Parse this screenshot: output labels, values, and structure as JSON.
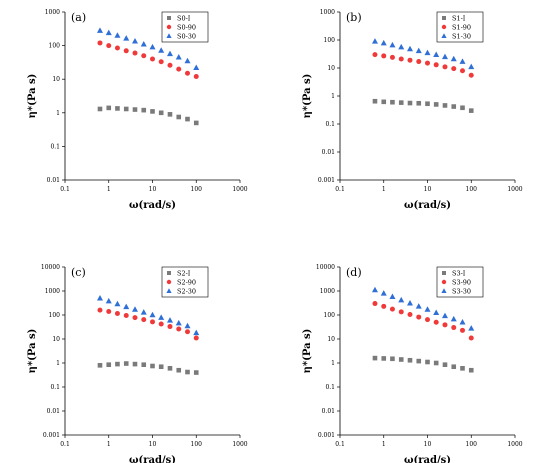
{
  "colors": {
    "series_i": "#7a7a7a",
    "series_90": "#f03a3a",
    "series_30": "#2f6fd6"
  },
  "chart_data": [
    {
      "type": "scatter",
      "panel_label": "(a)",
      "xlabel": "ω(rad/s)",
      "ylabel": "η*(Pa s)",
      "xscale": "log",
      "yscale": "log",
      "xlim": [
        0.1,
        1000
      ],
      "ylim": [
        0.01,
        1000
      ],
      "xticks": [
        "0.1",
        "1",
        "10",
        "100",
        "1000"
      ],
      "yticks": [
        "0.01",
        "0.1",
        "1",
        "10",
        "100",
        "1000"
      ],
      "legend": "top-right",
      "x": [
        0.63,
        1.0,
        1.58,
        2.51,
        3.98,
        6.31,
        10,
        15.8,
        25.1,
        39.8,
        63.1,
        100
      ],
      "series": [
        {
          "name": "S0-I",
          "marker": "square",
          "values": [
            1.3,
            1.4,
            1.35,
            1.3,
            1.25,
            1.2,
            1.1,
            1.0,
            0.9,
            0.75,
            0.65,
            0.5
          ]
        },
        {
          "name": "S0-90",
          "marker": "circle",
          "values": [
            120,
            100,
            85,
            70,
            60,
            50,
            40,
            33,
            26,
            20,
            15,
            12
          ]
        },
        {
          "name": "S0-30",
          "marker": "triangle",
          "values": [
            280,
            240,
            200,
            165,
            135,
            110,
            90,
            72,
            57,
            45,
            35,
            22
          ]
        }
      ]
    },
    {
      "type": "scatter",
      "panel_label": "(b)",
      "xlabel": "ω(rad/s)",
      "ylabel": "η*(Pa s)",
      "xscale": "log",
      "yscale": "log",
      "xlim": [
        0.1,
        1000
      ],
      "ylim": [
        0.001,
        1000
      ],
      "xticks": [
        "0.1",
        "1",
        "10",
        "100",
        "1000"
      ],
      "yticks": [
        "0.001",
        "0.01",
        "0.1",
        "1",
        "10",
        "100",
        "1000"
      ],
      "legend": "top-right",
      "x": [
        0.63,
        1.0,
        1.58,
        2.51,
        3.98,
        6.31,
        10,
        15.8,
        25.1,
        39.8,
        63.1,
        100
      ],
      "series": [
        {
          "name": "S1-I",
          "marker": "square",
          "values": [
            0.65,
            0.62,
            0.6,
            0.58,
            0.56,
            0.55,
            0.53,
            0.5,
            0.46,
            0.42,
            0.38,
            0.3
          ]
        },
        {
          "name": "S1-90",
          "marker": "circle",
          "values": [
            30,
            27,
            24,
            21,
            19,
            17,
            15,
            13,
            11,
            9.5,
            8,
            5.5
          ]
        },
        {
          "name": "S1-30",
          "marker": "triangle",
          "values": [
            90,
            78,
            66,
            56,
            48,
            41,
            35,
            30,
            25,
            21,
            17,
            11
          ]
        }
      ]
    },
    {
      "type": "scatter",
      "panel_label": "(c)",
      "xlabel": "ω(rad/s)",
      "ylabel": "η*(Pa s)",
      "xscale": "log",
      "yscale": "log",
      "xlim": [
        0.1,
        1000
      ],
      "ylim": [
        0.001,
        10000
      ],
      "xticks": [
        "0.1",
        "1",
        "10",
        "100",
        "1000"
      ],
      "yticks": [
        "0.001",
        "0.01",
        "0.1",
        "1",
        "10",
        "100",
        "1000",
        "10000"
      ],
      "legend": "top-right",
      "x": [
        0.63,
        1.0,
        1.58,
        2.51,
        3.98,
        6.31,
        10,
        15.8,
        25.1,
        39.8,
        63.1,
        100
      ],
      "series": [
        {
          "name": "S2-I",
          "marker": "square",
          "values": [
            0.8,
            0.85,
            0.9,
            0.95,
            0.9,
            0.85,
            0.75,
            0.7,
            0.6,
            0.5,
            0.42,
            0.4
          ]
        },
        {
          "name": "S2-90",
          "marker": "circle",
          "values": [
            160,
            140,
            115,
            95,
            78,
            64,
            52,
            42,
            33,
            26,
            20,
            11
          ]
        },
        {
          "name": "S2-30",
          "marker": "triangle",
          "values": [
            500,
            380,
            290,
            220,
            170,
            130,
            100,
            78,
            60,
            46,
            35,
            18
          ]
        }
      ]
    },
    {
      "type": "scatter",
      "panel_label": "(d)",
      "xlabel": "ω(rad/s)",
      "ylabel": "η*(Pa s)",
      "xscale": "log",
      "yscale": "log",
      "xlim": [
        0.1,
        1000
      ],
      "ylim": [
        0.001,
        10000
      ],
      "xticks": [
        "0.1",
        "1",
        "10",
        "100",
        "1000"
      ],
      "yticks": [
        "0.001",
        "0.01",
        "0.1",
        "1",
        "10",
        "100",
        "1000",
        "10000"
      ],
      "legend": "top-right",
      "x": [
        0.63,
        1.0,
        1.58,
        2.51,
        3.98,
        6.31,
        10,
        15.8,
        25.1,
        39.8,
        63.1,
        100
      ],
      "series": [
        {
          "name": "S3-I",
          "marker": "square",
          "values": [
            1.6,
            1.55,
            1.5,
            1.4,
            1.3,
            1.2,
            1.1,
            1.0,
            0.85,
            0.7,
            0.6,
            0.5
          ]
        },
        {
          "name": "S3-90",
          "marker": "circle",
          "values": [
            300,
            230,
            175,
            135,
            105,
            82,
            64,
            50,
            39,
            30,
            23,
            11
          ]
        },
        {
          "name": "S3-30",
          "marker": "triangle",
          "values": [
            1100,
            800,
            580,
            420,
            310,
            230,
            170,
            125,
            92,
            68,
            50,
            28
          ]
        }
      ]
    }
  ]
}
